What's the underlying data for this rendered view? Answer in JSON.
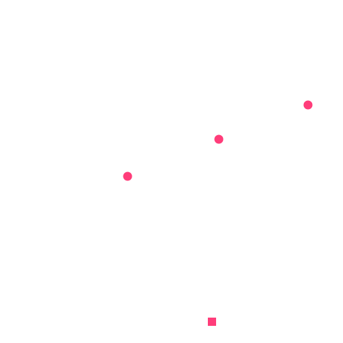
{
  "colors": {
    "marker": "#ff3d7a",
    "background": "#ffffff"
  },
  "markers": [
    {
      "shape": "circle",
      "name": "dot-1"
    },
    {
      "shape": "circle",
      "name": "dot-2"
    },
    {
      "shape": "circle",
      "name": "dot-3"
    },
    {
      "shape": "square",
      "name": "square-1"
    }
  ]
}
